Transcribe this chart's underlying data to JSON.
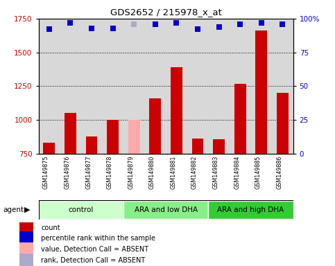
{
  "title": "GDS2652 / 215978_x_at",
  "samples": [
    "GSM149875",
    "GSM149876",
    "GSM149877",
    "GSM149878",
    "GSM149879",
    "GSM149880",
    "GSM149881",
    "GSM149882",
    "GSM149883",
    "GSM149884",
    "GSM149885",
    "GSM149886"
  ],
  "bar_values": [
    830,
    1050,
    880,
    1000,
    1000,
    1160,
    1390,
    860,
    855,
    1270,
    1660,
    1200
  ],
  "bar_absent": [
    false,
    false,
    false,
    false,
    true,
    false,
    false,
    false,
    false,
    false,
    false,
    false
  ],
  "percentile_values": [
    92,
    97,
    93,
    93,
    96,
    96,
    97,
    92,
    94,
    96,
    97,
    96
  ],
  "percentile_absent": [
    false,
    false,
    false,
    false,
    true,
    false,
    false,
    false,
    false,
    false,
    false,
    false
  ],
  "bar_color_normal": "#cc0000",
  "bar_color_absent": "#ffaaaa",
  "dot_color_normal": "#0000cc",
  "dot_color_absent": "#aaaacc",
  "ylim_left": [
    750,
    1750
  ],
  "ylim_right": [
    0,
    100
  ],
  "yticks_left": [
    750,
    1000,
    1250,
    1500,
    1750
  ],
  "yticks_right": [
    0,
    25,
    50,
    75,
    100
  ],
  "groups": [
    {
      "label": "control",
      "start": 0,
      "end": 4,
      "color": "#ccffcc"
    },
    {
      "label": "ARA and low DHA",
      "start": 4,
      "end": 8,
      "color": "#88ee88"
    },
    {
      "label": "ARA and high DHA",
      "start": 8,
      "end": 12,
      "color": "#33cc33"
    }
  ],
  "agent_label": "agent",
  "legend_items": [
    {
      "color": "#cc0000",
      "label": "count"
    },
    {
      "color": "#0000cc",
      "label": "percentile rank within the sample"
    },
    {
      "color": "#ffaaaa",
      "label": "value, Detection Call = ABSENT"
    },
    {
      "color": "#aaaacc",
      "label": "rank, Detection Call = ABSENT"
    }
  ],
  "bar_width": 0.55,
  "dot_size": 30,
  "plot_bg_color": "#d8d8d8",
  "label_bg_color": "#cccccc",
  "grid_color": "#000000"
}
